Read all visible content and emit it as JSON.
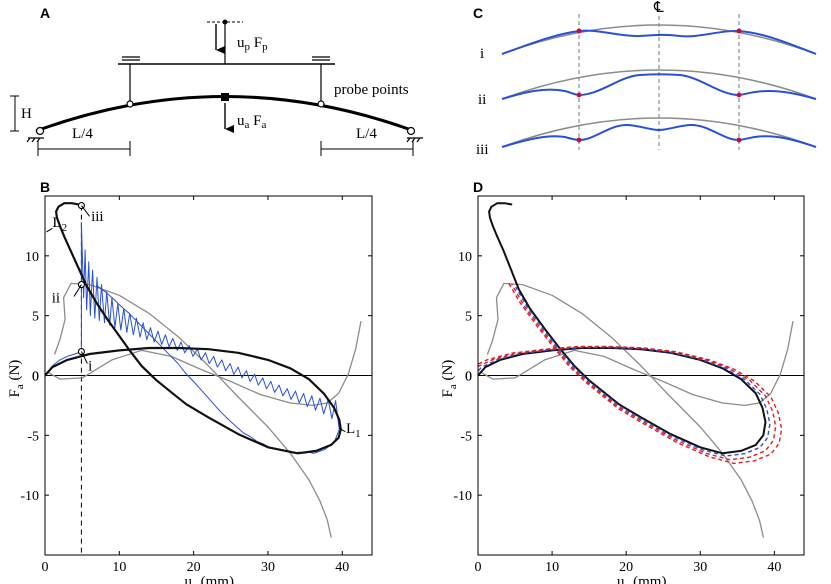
{
  "panel_labels": {
    "a": "A",
    "b": "B",
    "c": "C",
    "d": "D"
  },
  "panel_a": {
    "probe_force": "u",
    "probe_force_sub": "p",
    "probe_force_f": " F",
    "probe_force_f_sub": "p",
    "apex_force": "u",
    "apex_force_sub": "a",
    "apex_force_f": " F",
    "apex_force_f_sub": "a",
    "probe_points_label": "probe points",
    "height_label": "H",
    "left_dim": "L/4",
    "right_dim": "L/4"
  },
  "panel_c": {
    "centerline_symbol": "℄",
    "rows": [
      "i",
      "ii",
      "iii"
    ]
  },
  "colors": {
    "blue": "#2a50d6",
    "gray": "#8c8c8c",
    "black": "#111111",
    "red": "#d6202a",
    "probe": "#c8102e"
  },
  "chart_data": [
    {
      "id": "B",
      "type": "line",
      "xlabel": "u",
      "xlabel_sub": "a",
      "xlabel_unit": " (mm)",
      "ylabel": "F",
      "ylabel_sub": "a",
      "ylabel_unit": " (N)",
      "xlim": [
        0,
        44
      ],
      "ylim": [
        -15,
        15
      ],
      "xticks": [
        0,
        10,
        20,
        30,
        40
      ],
      "xtick_labels": [
        "0",
        "10",
        "20",
        "30",
        "40"
      ],
      "yticks": [
        -10,
        -5,
        0,
        5,
        10
      ],
      "ytick_labels": [
        "-10",
        "-5",
        "0",
        "5",
        "10"
      ],
      "annotations": [
        {
          "text": "L",
          "sub": "2",
          "x": 1.0,
          "y": 12.4
        },
        {
          "text": "iii",
          "x": 6.2,
          "y": 12.9
        },
        {
          "text": "ii",
          "x": 0.9,
          "y": 6.1
        },
        {
          "text": "i",
          "x": 5.8,
          "y": 0.4
        },
        {
          "text": "L",
          "sub": "1",
          "x": 40.5,
          "y": -4.8
        }
      ],
      "markers": [
        {
          "name": "iii",
          "x": 4.9,
          "y": 14.2
        },
        {
          "name": "ii",
          "x": 4.9,
          "y": 7.6
        },
        {
          "name": "i",
          "x": 4.9,
          "y": 2.0
        }
      ],
      "dashed_x": 4.9,
      "series": [
        {
          "name": "equilibrium-path",
          "color": "black",
          "width": 2.2,
          "x": [
            0,
            1,
            3,
            6,
            10,
            14,
            18,
            22,
            26,
            30,
            33,
            35.5,
            37.5,
            38.9,
            39.6,
            39.8,
            39.5,
            38.5,
            36.5,
            34,
            30,
            26,
            22,
            19,
            17,
            15,
            13,
            11.5,
            10,
            8.5,
            7,
            5.5,
            4.5,
            3.4,
            2.6,
            2.0,
            1.6,
            1.5,
            1.8,
            2.6,
            3.6,
            4.5
          ],
          "y": [
            0,
            0.7,
            1.3,
            1.8,
            2.1,
            2.3,
            2.3,
            2.2,
            1.9,
            1.3,
            0.6,
            -0.3,
            -1.5,
            -2.7,
            -3.7,
            -4.5,
            -5.2,
            -5.8,
            -6.3,
            -6.5,
            -6.0,
            -4.9,
            -3.5,
            -2.4,
            -1.4,
            -0.4,
            0.8,
            2.0,
            3.3,
            4.6,
            6.0,
            7.6,
            9.0,
            10.5,
            11.6,
            12.5,
            13.2,
            13.7,
            14.1,
            14.4,
            14.4,
            14.3
          ]
        },
        {
          "name": "gray-path-left",
          "color": "gray",
          "width": 1.3,
          "x": [
            2.7,
            2.5,
            3.5,
            6,
            10,
            14,
            18,
            22,
            26,
            30,
            33,
            35.5,
            37,
            38,
            38.5
          ],
          "y": [
            4.7,
            6.5,
            7.7,
            7.6,
            6.7,
            5.2,
            3.2,
            0.8,
            -1.8,
            -4.3,
            -6.5,
            -8.7,
            -10.5,
            -12.1,
            -13.5
          ],
          "pre": {
            "x": [
              1.3,
              2.0,
              2.7
            ],
            "y": [
              1.8,
              3.0,
              4.7
            ]
          }
        },
        {
          "name": "gray-path-right",
          "color": "gray",
          "width": 1.3,
          "x": [
            0.3,
            2,
            5,
            9,
            13,
            17,
            21,
            25,
            29,
            33,
            36,
            38,
            39.5,
            40.8,
            41.8,
            42.5
          ],
          "y": [
            0.3,
            -0.3,
            -0.2,
            1.3,
            2.1,
            1.6,
            0.5,
            -0.5,
            -1.6,
            -2.3,
            -2.5,
            -2.3,
            -1.5,
            0.1,
            2.2,
            4.5
          ]
        },
        {
          "name": "blue-sawtooth",
          "color": "blue",
          "width": 1.0,
          "x": [
            0,
            1,
            2,
            3,
            4,
            4.9,
            4.9,
            5.2,
            5.4,
            5.6,
            5.9,
            6.1,
            6.4,
            6.7,
            7.0,
            7.3,
            7.6,
            8.0,
            8.3,
            8.7,
            9.0,
            9.4,
            9.8,
            10.2,
            10.6,
            11.0,
            11.4,
            11.9,
            12.3,
            12.8,
            13.2,
            13.7,
            14.2,
            14.7,
            15.2,
            15.7,
            16.2,
            16.7,
            17.2,
            17.8,
            18.3,
            18.8,
            19.4,
            19.9,
            20.5,
            21.0,
            21.6,
            22.1,
            22.7,
            23.2,
            23.8,
            24.3,
            24.9,
            25.4,
            26.0,
            26.5,
            27.1,
            27.6,
            28.2,
            28.7,
            29.3,
            29.8,
            30.4,
            30.9,
            31.5,
            32.0,
            32.6,
            33.1,
            33.7,
            34.2,
            34.8,
            35.3,
            35.9,
            36.4,
            37.0,
            37.5,
            38.1,
            38.6,
            39.1,
            39.5,
            39.6,
            38.9,
            37.6,
            36.2,
            35.4,
            34.9,
            34.2,
            33.4,
            32.7,
            31.9,
            31.1,
            30.2,
            29.3,
            28.5,
            27.6,
            26.7,
            25.8,
            24.9,
            23.9,
            23.0,
            22.0,
            21.0,
            20.0,
            18.9,
            17.9,
            16.8,
            15.7,
            14.6,
            13.5,
            12.4,
            11.3,
            10.2,
            9.2,
            8.1,
            7.0
          ],
          "y": [
            0,
            0.8,
            1.3,
            1.6,
            1.8,
            2.0,
            12.8,
            6.5,
            10.5,
            5.5,
            9.5,
            5.0,
            8.8,
            4.8,
            8.2,
            4.6,
            7.6,
            4.4,
            7.0,
            4.2,
            6.5,
            4.0,
            6.0,
            3.8,
            5.6,
            3.6,
            5.2,
            3.4,
            4.8,
            3.2,
            4.4,
            3.0,
            4.0,
            2.8,
            3.7,
            2.6,
            3.4,
            2.4,
            3.1,
            2.1,
            2.8,
            1.9,
            2.5,
            1.6,
            2.2,
            1.3,
            1.9,
            1.0,
            1.6,
            0.7,
            1.3,
            0.4,
            1.0,
            0.1,
            0.7,
            -0.2,
            0.4,
            -0.5,
            0.1,
            -0.8,
            -0.2,
            -1.1,
            -0.5,
            -1.4,
            -0.8,
            -1.7,
            -1.1,
            -2.0,
            -1.3,
            -2.3,
            -1.5,
            -2.6,
            -1.7,
            -2.9,
            -1.9,
            -3.2,
            -2.0,
            -3.6,
            -2.1,
            -4.1,
            -4.5,
            -5.6,
            -6.2,
            -6.5,
            -6.4,
            -6.5,
            -6.4,
            -6.5,
            -6.3,
            -6.3,
            -6.1,
            -6.0,
            -5.7,
            -5.5,
            -5.1,
            -4.8,
            -4.3,
            -3.8,
            -3.2,
            -2.6,
            -1.9,
            -1.2,
            -0.5,
            0.2,
            1.0,
            1.7,
            2.4,
            3.1,
            3.8,
            4.5,
            5.2,
            5.8,
            6.4,
            7.0,
            7.5
          ]
        }
      ]
    },
    {
      "id": "D",
      "type": "line",
      "xlabel": "u",
      "xlabel_sub": "a",
      "xlabel_unit": " (mm)",
      "ylabel": "F",
      "ylabel_sub": "a",
      "ylabel_unit": " (N)",
      "xlim": [
        0,
        44
      ],
      "ylim": [
        -15,
        15
      ],
      "xticks": [
        0,
        10,
        20,
        30,
        40
      ],
      "xtick_labels": [
        "0",
        "10",
        "20",
        "30",
        "40"
      ],
      "yticks": [
        -10,
        -5,
        0,
        5,
        10
      ],
      "ytick_labels": [
        "-10",
        "-5",
        "0",
        "5",
        "10"
      ],
      "series": [
        {
          "name": "equilibrium-path",
          "color": "black",
          "width": 2.0,
          "x": [
            0,
            1,
            3,
            6,
            10,
            14,
            18,
            22,
            26,
            30,
            33,
            35.5,
            37.5,
            38.4,
            38.8,
            38.5,
            37.5,
            35.5,
            33,
            30,
            26,
            22,
            19,
            17,
            15,
            13,
            11,
            9,
            7,
            5.5,
            4.5,
            3.4,
            2.6,
            2.0,
            1.6,
            1.5,
            1.8,
            2.6,
            3.6,
            4.5
          ],
          "y": [
            0,
            0.7,
            1.3,
            1.8,
            2.1,
            2.3,
            2.3,
            2.2,
            1.9,
            1.3,
            0.6,
            -0.3,
            -1.5,
            -2.7,
            -3.9,
            -5.0,
            -5.8,
            -6.3,
            -6.5,
            -6.0,
            -4.9,
            -3.5,
            -2.4,
            -1.4,
            -0.4,
            0.8,
            2.3,
            3.9,
            5.6,
            7.2,
            8.8,
            10.5,
            11.6,
            12.5,
            13.2,
            13.7,
            14.1,
            14.4,
            14.4,
            14.3
          ]
        },
        {
          "name": "gray-path-left",
          "color": "gray",
          "width": 1.3,
          "x": [
            1.3,
            2.0,
            2.7,
            2.5,
            3.5,
            6,
            10,
            14,
            18,
            22,
            26,
            30,
            33,
            35.5,
            37,
            38,
            38.5
          ],
          "y": [
            1.8,
            3.0,
            4.7,
            6.5,
            7.7,
            7.6,
            6.7,
            5.2,
            3.2,
            0.8,
            -1.8,
            -4.3,
            -6.5,
            -8.7,
            -10.5,
            -12.1,
            -13.5
          ]
        },
        {
          "name": "gray-path-right",
          "color": "gray",
          "width": 1.3,
          "x": [
            0.3,
            2,
            5,
            9,
            13,
            17,
            21,
            25,
            29,
            33,
            36,
            38,
            39.5,
            40.8,
            41.8,
            42.5
          ],
          "y": [
            0.3,
            -0.3,
            -0.2,
            1.3,
            2.1,
            1.6,
            0.5,
            -0.5,
            -1.6,
            -2.3,
            -2.5,
            -2.3,
            -1.5,
            0.1,
            2.2,
            4.5
          ]
        }
      ],
      "dashed_loops": [
        {
          "name": "inner-blue",
          "color": "blue",
          "scale": 1.03
        },
        {
          "name": "inner-red",
          "color": "red",
          "scale": 1.07
        },
        {
          "name": "outer-red",
          "color": "red",
          "scale": 1.11
        }
      ]
    }
  ]
}
